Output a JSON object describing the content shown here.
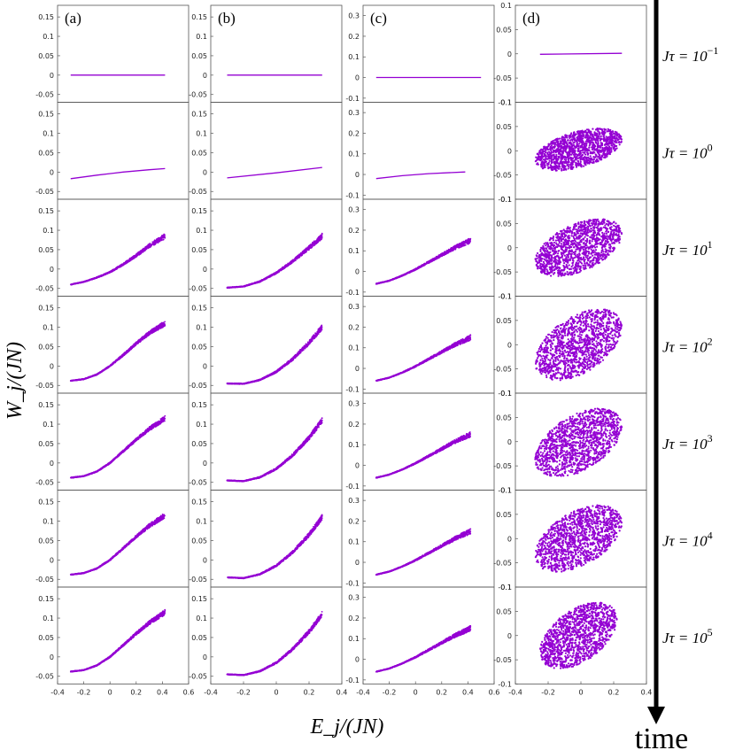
{
  "figure": {
    "ylabel": "W_j/(JN)",
    "xlabel": "E_j/(JN)",
    "time_label": "time",
    "point_color": "#9400D3"
  },
  "chart_data": {
    "type": "scatter",
    "panel_labels": [
      "(a)",
      "(b)",
      "(c)",
      "(d)"
    ],
    "row_labels": [
      "Jτ = 10^{-1}",
      "Jτ = 10^{0}",
      "Jτ = 10^{1}",
      "Jτ = 10^{2}",
      "Jτ = 10^{3}",
      "Jτ = 10^{4}",
      "Jτ = 10^{5}"
    ],
    "row_label_parts": [
      {
        "base": "Jτ = 10",
        "exp": "−1"
      },
      {
        "base": "Jτ = 10",
        "exp": "0"
      },
      {
        "base": "Jτ = 10",
        "exp": "1"
      },
      {
        "base": "Jτ = 10",
        "exp": "2"
      },
      {
        "base": "Jτ = 10",
        "exp": "3"
      },
      {
        "base": "Jτ = 10",
        "exp": "4"
      },
      {
        "base": "Jτ = 10",
        "exp": "5"
      }
    ],
    "columns": [
      {
        "label": "(a)",
        "xlim": [
          -0.4,
          0.6
        ],
        "xticks": [
          -0.4,
          -0.2,
          0,
          0.2,
          0.4,
          0.6
        ],
        "xtick_labels": [
          "-0.4",
          "-0.2",
          "0",
          "0.2",
          "0.4",
          "0.6"
        ],
        "ylim": [
          -0.07,
          0.18
        ],
        "yticks": [
          -0.05,
          0,
          0.05,
          0.1,
          0.15
        ],
        "ytick_labels": [
          "-0.05",
          "0",
          "0.05",
          "0.1",
          "0.15"
        ],
        "rows": [
          {
            "shape": "line",
            "x_range": [
              -0.3,
              0.42
            ],
            "points": [
              [
                -0.3,
                0
              ],
              [
                0.42,
                0
              ]
            ]
          },
          {
            "shape": "line",
            "x_range": [
              -0.3,
              0.42
            ],
            "points": [
              [
                -0.3,
                -0.017
              ],
              [
                -0.1,
                -0.008
              ],
              [
                0.1,
                0.0
              ],
              [
                0.3,
                0.006
              ],
              [
                0.42,
                0.009
              ]
            ]
          },
          {
            "shape": "curve",
            "x_range": [
              -0.3,
              0.42
            ],
            "points": [
              [
                -0.3,
                -0.04
              ],
              [
                -0.2,
                -0.033
              ],
              [
                -0.1,
                -0.022
              ],
              [
                0.0,
                -0.008
              ],
              [
                0.1,
                0.012
              ],
              [
                0.2,
                0.035
              ],
              [
                0.3,
                0.06
              ],
              [
                0.42,
                0.085
              ]
            ]
          },
          {
            "shape": "curve",
            "x_range": [
              -0.3,
              0.42
            ],
            "points": [
              [
                -0.3,
                -0.038
              ],
              [
                -0.2,
                -0.034
              ],
              [
                -0.1,
                -0.022
              ],
              [
                0.0,
                0.0
              ],
              [
                0.1,
                0.028
              ],
              [
                0.2,
                0.058
              ],
              [
                0.3,
                0.085
              ],
              [
                0.42,
                0.11
              ]
            ]
          },
          {
            "shape": "curve",
            "x_range": [
              -0.3,
              0.42
            ],
            "points": [
              [
                -0.3,
                -0.038
              ],
              [
                -0.2,
                -0.034
              ],
              [
                -0.1,
                -0.022
              ],
              [
                0.0,
                0.0
              ],
              [
                0.1,
                0.03
              ],
              [
                0.2,
                0.06
              ],
              [
                0.3,
                0.088
              ],
              [
                0.42,
                0.115
              ]
            ]
          },
          {
            "shape": "curve",
            "x_range": [
              -0.3,
              0.42
            ],
            "points": [
              [
                -0.3,
                -0.038
              ],
              [
                -0.2,
                -0.034
              ],
              [
                -0.1,
                -0.022
              ],
              [
                0.0,
                0.0
              ],
              [
                0.1,
                0.03
              ],
              [
                0.2,
                0.06
              ],
              [
                0.3,
                0.088
              ],
              [
                0.42,
                0.115
              ]
            ]
          },
          {
            "shape": "curve",
            "x_range": [
              -0.3,
              0.42
            ],
            "points": [
              [
                -0.3,
                -0.038
              ],
              [
                -0.2,
                -0.034
              ],
              [
                -0.1,
                -0.022
              ],
              [
                0.0,
                0.0
              ],
              [
                0.1,
                0.03
              ],
              [
                0.2,
                0.06
              ],
              [
                0.3,
                0.088
              ],
              [
                0.42,
                0.115
              ]
            ]
          }
        ]
      },
      {
        "label": "(b)",
        "xlim": [
          -0.4,
          0.4
        ],
        "xticks": [
          -0.4,
          -0.2,
          0,
          0.2,
          0.4
        ],
        "xtick_labels": [
          "-0.4",
          "-0.2",
          "0",
          "0.2",
          "0.4"
        ],
        "ylim": [
          -0.07,
          0.18
        ],
        "yticks": [
          -0.05,
          0,
          0.05,
          0.1,
          0.15
        ],
        "ytick_labels": [
          "-0.05",
          "0",
          "0.05",
          "0.1",
          "0.15"
        ],
        "rows": [
          {
            "shape": "line",
            "x_range": [
              -0.3,
              0.28
            ],
            "points": [
              [
                -0.3,
                0
              ],
              [
                0.28,
                0
              ]
            ]
          },
          {
            "shape": "line",
            "x_range": [
              -0.3,
              0.28
            ],
            "points": [
              [
                -0.3,
                -0.015
              ],
              [
                0.0,
                -0.002
              ],
              [
                0.28,
                0.012
              ]
            ]
          },
          {
            "shape": "curve",
            "x_range": [
              -0.3,
              0.28
            ],
            "points": [
              [
                -0.3,
                -0.048
              ],
              [
                -0.2,
                -0.045
              ],
              [
                -0.1,
                -0.032
              ],
              [
                0.0,
                -0.01
              ],
              [
                0.1,
                0.02
              ],
              [
                0.2,
                0.055
              ],
              [
                0.28,
                0.085
              ]
            ]
          },
          {
            "shape": "curve",
            "x_range": [
              -0.3,
              0.28
            ],
            "points": [
              [
                -0.3,
                -0.045
              ],
              [
                -0.2,
                -0.046
              ],
              [
                -0.1,
                -0.036
              ],
              [
                0.0,
                -0.015
              ],
              [
                0.1,
                0.018
              ],
              [
                0.2,
                0.06
              ],
              [
                0.28,
                0.1
              ]
            ]
          },
          {
            "shape": "curve",
            "x_range": [
              -0.3,
              0.28
            ],
            "points": [
              [
                -0.3,
                -0.045
              ],
              [
                -0.2,
                -0.047
              ],
              [
                -0.1,
                -0.037
              ],
              [
                0.0,
                -0.015
              ],
              [
                0.1,
                0.02
              ],
              [
                0.2,
                0.065
              ],
              [
                0.28,
                0.11
              ]
            ]
          },
          {
            "shape": "curve",
            "x_range": [
              -0.3,
              0.28
            ],
            "points": [
              [
                -0.3,
                -0.045
              ],
              [
                -0.2,
                -0.047
              ],
              [
                -0.1,
                -0.037
              ],
              [
                0.0,
                -0.015
              ],
              [
                0.1,
                0.02
              ],
              [
                0.2,
                0.065
              ],
              [
                0.28,
                0.11
              ]
            ]
          },
          {
            "shape": "curve",
            "x_range": [
              -0.3,
              0.28
            ],
            "points": [
              [
                -0.3,
                -0.045
              ],
              [
                -0.2,
                -0.047
              ],
              [
                -0.1,
                -0.037
              ],
              [
                0.0,
                -0.015
              ],
              [
                0.1,
                0.02
              ],
              [
                0.2,
                0.065
              ],
              [
                0.28,
                0.11
              ]
            ]
          }
        ]
      },
      {
        "label": "(c)",
        "xlim": [
          -0.4,
          0.6
        ],
        "xticks": [
          -0.4,
          -0.2,
          0,
          0.2,
          0.4,
          0.6
        ],
        "xtick_labels": [
          "-0.4",
          "-0.2",
          "0",
          "0.2",
          "0.4",
          "0.6"
        ],
        "ylim": [
          -0.12,
          0.35
        ],
        "yticks": [
          -0.1,
          0,
          0.1,
          0.2,
          0.3
        ],
        "ytick_labels": [
          "-0.1",
          "0",
          "0.1",
          "0.2",
          "0.3"
        ],
        "rows": [
          {
            "shape": "line",
            "x_range": [
              -0.3,
              0.5
            ],
            "points": [
              [
                -0.3,
                0
              ],
              [
                0.5,
                0
              ]
            ]
          },
          {
            "shape": "line",
            "x_range": [
              -0.3,
              0.38
            ],
            "points": [
              [
                -0.3,
                -0.02
              ],
              [
                -0.1,
                -0.006
              ],
              [
                0.1,
                0.004
              ],
              [
                0.38,
                0.012
              ]
            ]
          },
          {
            "shape": "curve",
            "x_range": [
              -0.3,
              0.42
            ],
            "points": [
              [
                -0.3,
                -0.06
              ],
              [
                -0.2,
                -0.045
              ],
              [
                -0.1,
                -0.02
              ],
              [
                0.0,
                0.01
              ],
              [
                0.1,
                0.045
              ],
              [
                0.2,
                0.08
              ],
              [
                0.3,
                0.115
              ],
              [
                0.42,
                0.15
              ]
            ]
          },
          {
            "shape": "curve",
            "x_range": [
              -0.3,
              0.42
            ],
            "points": [
              [
                -0.3,
                -0.06
              ],
              [
                -0.2,
                -0.045
              ],
              [
                -0.1,
                -0.02
              ],
              [
                0.0,
                0.01
              ],
              [
                0.1,
                0.045
              ],
              [
                0.2,
                0.08
              ],
              [
                0.3,
                0.115
              ],
              [
                0.42,
                0.15
              ]
            ]
          },
          {
            "shape": "curve",
            "x_range": [
              -0.3,
              0.42
            ],
            "points": [
              [
                -0.3,
                -0.06
              ],
              [
                -0.2,
                -0.045
              ],
              [
                -0.1,
                -0.02
              ],
              [
                0.0,
                0.01
              ],
              [
                0.1,
                0.045
              ],
              [
                0.2,
                0.08
              ],
              [
                0.3,
                0.115
              ],
              [
                0.42,
                0.15
              ]
            ]
          },
          {
            "shape": "curve",
            "x_range": [
              -0.3,
              0.42
            ],
            "points": [
              [
                -0.3,
                -0.06
              ],
              [
                -0.2,
                -0.045
              ],
              [
                -0.1,
                -0.02
              ],
              [
                0.0,
                0.01
              ],
              [
                0.1,
                0.045
              ],
              [
                0.2,
                0.08
              ],
              [
                0.3,
                0.115
              ],
              [
                0.42,
                0.15
              ]
            ]
          },
          {
            "shape": "curve",
            "x_range": [
              -0.3,
              0.42
            ],
            "points": [
              [
                -0.3,
                -0.06
              ],
              [
                -0.2,
                -0.045
              ],
              [
                -0.1,
                -0.02
              ],
              [
                0.0,
                0.01
              ],
              [
                0.1,
                0.045
              ],
              [
                0.2,
                0.08
              ],
              [
                0.3,
                0.115
              ],
              [
                0.42,
                0.15
              ]
            ]
          }
        ]
      },
      {
        "label": "(d)",
        "xlim": [
          -0.4,
          0.4
        ],
        "xticks": [
          -0.4,
          -0.2,
          0,
          0.2,
          0.4
        ],
        "xtick_labels": [
          "-0.4",
          "-0.2",
          "0",
          "0.2",
          "0.4"
        ],
        "ylim": [
          -0.1,
          0.1
        ],
        "yticks": [
          -0.1,
          -0.05,
          0,
          0.05,
          0.1
        ],
        "ytick_labels": [
          "-0.1",
          "-0.05",
          "0",
          "0.05",
          "0.1"
        ],
        "rows": [
          {
            "shape": "line",
            "x_range": [
              -0.25,
              0.25
            ],
            "points": [
              [
                -0.25,
                -0.001
              ],
              [
                0.25,
                0.001
              ]
            ]
          },
          {
            "shape": "blob",
            "x_range": [
              -0.28,
              0.25
            ],
            "y_range": [
              -0.045,
              0.05
            ]
          },
          {
            "shape": "blob",
            "x_range": [
              -0.28,
              0.25
            ],
            "y_range": [
              -0.065,
              0.065
            ]
          },
          {
            "shape": "blob",
            "x_range": [
              -0.28,
              0.25
            ],
            "y_range": [
              -0.08,
              0.08
            ]
          },
          {
            "shape": "blob",
            "x_range": [
              -0.28,
              0.25
            ],
            "y_range": [
              -0.08,
              0.075
            ]
          },
          {
            "shape": "blob",
            "x_range": [
              -0.28,
              0.25
            ],
            "y_range": [
              -0.075,
              0.075
            ]
          },
          {
            "shape": "blob",
            "x_range": [
              -0.25,
              0.22
            ],
            "y_range": [
              -0.075,
              0.075
            ]
          }
        ]
      }
    ]
  }
}
